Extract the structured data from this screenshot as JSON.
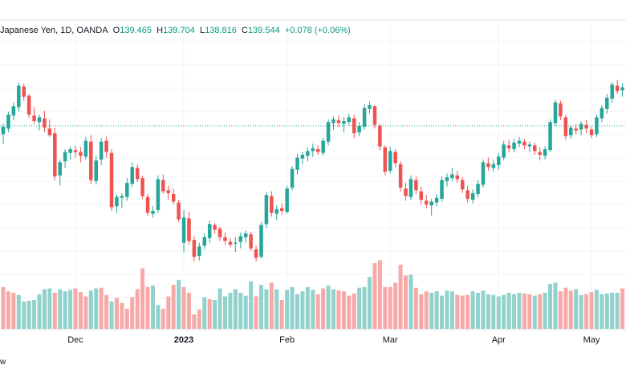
{
  "legend": {
    "symbol": "Japanese Yen, 1D, OANDA",
    "open_label": "O",
    "open": "139.465",
    "high_label": "H",
    "high": "139.704",
    "low_label": "L",
    "low": "138.816",
    "close_label": "C",
    "close": "139.544",
    "change": "+0.078 (+0.06%)"
  },
  "bottom_label": "w",
  "colors": {
    "up": "#26a69a",
    "down": "#ef5350",
    "up_volume": "#92d2cc",
    "down_volume": "#f7a9a7",
    "grid": "#f0f3fa",
    "dotted_line": "#26a69a",
    "text": "#131722"
  },
  "chart_data": {
    "type": "candlestick",
    "x_ticks": [
      "Dec",
      "2023",
      "Feb",
      "Mar",
      "Apr",
      "May"
    ],
    "ohlc": [
      [
        132.8,
        133.9,
        131.8,
        133.6
      ],
      [
        133.4,
        135.2,
        133.0,
        134.9
      ],
      [
        134.8,
        136.2,
        134.3,
        135.8
      ],
      [
        135.7,
        138.3,
        135.2,
        138.0
      ],
      [
        137.9,
        138.2,
        136.4,
        136.8
      ],
      [
        136.9,
        137.1,
        134.5,
        134.9
      ],
      [
        134.8,
        135.7,
        133.9,
        134.2
      ],
      [
        134.1,
        134.9,
        133.2,
        134.6
      ],
      [
        134.5,
        135.3,
        133.0,
        133.5
      ],
      [
        133.4,
        134.4,
        132.5,
        132.7
      ],
      [
        132.9,
        133.5,
        127.9,
        128.3
      ],
      [
        128.4,
        130.1,
        127.3,
        129.8
      ],
      [
        129.9,
        131.2,
        129.2,
        130.9
      ],
      [
        130.8,
        131.5,
        130.1,
        131.2
      ],
      [
        131.1,
        131.6,
        130.3,
        130.9
      ],
      [
        130.9,
        131.4,
        129.8,
        130.5
      ],
      [
        130.4,
        132.5,
        130.1,
        132.1
      ],
      [
        132.0,
        132.7,
        127.5,
        127.9
      ],
      [
        127.8,
        130.5,
        127.4,
        130.0
      ],
      [
        130.1,
        132.4,
        129.5,
        132.0
      ],
      [
        132.1,
        132.5,
        130.3,
        130.9
      ],
      [
        130.8,
        131.2,
        124.6,
        125.0
      ],
      [
        125.1,
        126.4,
        124.4,
        126.1
      ],
      [
        126.0,
        126.5,
        124.9,
        126.2
      ],
      [
        126.1,
        128.1,
        125.7,
        127.6
      ],
      [
        127.5,
        129.8,
        127.2,
        129.3
      ],
      [
        129.2,
        129.6,
        127.7,
        128.0
      ],
      [
        128.1,
        128.4,
        125.9,
        126.2
      ],
      [
        126.1,
        126.4,
        124.1,
        124.4
      ],
      [
        124.3,
        125.1,
        123.9,
        124.6
      ],
      [
        124.7,
        128.4,
        124.4,
        128.0
      ],
      [
        127.9,
        128.5,
        126.4,
        126.7
      ],
      [
        126.8,
        127.3,
        125.8,
        126.5
      ],
      [
        126.4,
        127.0,
        125.3,
        125.6
      ],
      [
        125.5,
        125.8,
        123.4,
        123.7
      ],
      [
        121.2,
        124.7,
        120.2,
        123.9
      ],
      [
        123.8,
        124.5,
        121.0,
        121.4
      ],
      [
        121.5,
        121.9,
        119.2,
        119.7
      ],
      [
        119.8,
        121.2,
        119.3,
        120.8
      ],
      [
        120.9,
        122.2,
        120.5,
        121.8
      ],
      [
        121.7,
        123.6,
        121.2,
        123.2
      ],
      [
        123.1,
        123.3,
        122.2,
        122.6
      ],
      [
        122.7,
        122.9,
        121.4,
        121.8
      ],
      [
        121.8,
        122.3,
        121.0,
        121.4
      ],
      [
        121.3,
        121.7,
        120.7,
        121.0
      ],
      [
        121.1,
        121.8,
        120.2,
        121.2
      ],
      [
        121.3,
        122.3,
        120.6,
        121.9
      ],
      [
        121.8,
        122.5,
        121.2,
        122.2
      ],
      [
        122.1,
        122.4,
        120.3,
        120.6
      ],
      [
        120.5,
        120.9,
        119.2,
        119.6
      ],
      [
        119.7,
        123.4,
        119.5,
        123.1
      ],
      [
        123.2,
        126.6,
        122.8,
        126.3
      ],
      [
        126.2,
        126.7,
        124.0,
        124.4
      ],
      [
        124.3,
        125.2,
        123.6,
        124.8
      ],
      [
        124.9,
        125.4,
        124.2,
        124.6
      ],
      [
        124.5,
        127.3,
        124.3,
        127.0
      ],
      [
        127.1,
        129.4,
        126.8,
        129.1
      ],
      [
        129.0,
        130.7,
        128.5,
        130.3
      ],
      [
        130.2,
        130.9,
        129.6,
        130.6
      ],
      [
        130.5,
        131.4,
        129.9,
        131.0
      ],
      [
        131.0,
        131.8,
        130.4,
        131.3
      ],
      [
        131.2,
        131.6,
        130.6,
        130.9
      ],
      [
        130.8,
        132.4,
        130.5,
        132.1
      ],
      [
        132.0,
        134.4,
        131.6,
        134.1
      ],
      [
        134.0,
        134.7,
        133.3,
        134.4
      ],
      [
        134.3,
        134.8,
        133.6,
        134.0
      ],
      [
        133.9,
        134.6,
        133.0,
        134.2
      ],
      [
        134.1,
        135.0,
        133.8,
        134.6
      ],
      [
        134.5,
        134.9,
        132.4,
        132.9
      ],
      [
        133.0,
        134.1,
        132.6,
        133.7
      ],
      [
        133.6,
        136.0,
        133.3,
        135.6
      ],
      [
        135.5,
        136.3,
        135.0,
        135.9
      ],
      [
        135.8,
        135.9,
        133.4,
        133.8
      ],
      [
        133.7,
        133.9,
        131.1,
        131.5
      ],
      [
        131.4,
        131.6,
        128.4,
        128.8
      ],
      [
        128.9,
        131.4,
        128.6,
        131.0
      ],
      [
        130.9,
        131.2,
        129.3,
        129.7
      ],
      [
        129.6,
        129.9,
        126.7,
        127.1
      ],
      [
        127.0,
        127.6,
        125.7,
        126.2
      ],
      [
        126.1,
        128.4,
        125.8,
        128.0
      ],
      [
        127.9,
        128.3,
        126.4,
        126.8
      ],
      [
        126.7,
        127.2,
        125.3,
        125.8
      ],
      [
        125.7,
        126.3,
        124.9,
        125.3
      ],
      [
        125.2,
        125.9,
        124.1,
        125.6
      ],
      [
        125.5,
        126.4,
        125.1,
        126.0
      ],
      [
        125.9,
        128.3,
        125.6,
        127.9
      ],
      [
        127.8,
        128.6,
        127.2,
        128.2
      ],
      [
        128.1,
        129.2,
        127.8,
        128.5
      ],
      [
        128.4,
        128.9,
        127.6,
        128.0
      ],
      [
        127.9,
        128.2,
        126.5,
        126.9
      ],
      [
        126.8,
        127.3,
        125.5,
        125.9
      ],
      [
        125.8,
        126.9,
        125.4,
        126.5
      ],
      [
        126.4,
        127.9,
        126.1,
        127.5
      ],
      [
        127.4,
        130.1,
        127.1,
        129.8
      ],
      [
        129.7,
        130.3,
        128.9,
        129.3
      ],
      [
        129.2,
        130.1,
        128.8,
        129.6
      ],
      [
        129.5,
        130.8,
        129.0,
        130.4
      ],
      [
        130.3,
        132.1,
        130.0,
        131.7
      ],
      [
        131.6,
        132.2,
        130.9,
        131.3
      ],
      [
        131.2,
        132.3,
        130.9,
        131.9
      ],
      [
        131.8,
        132.5,
        131.4,
        132.1
      ],
      [
        132.0,
        132.3,
        131.2,
        131.6
      ],
      [
        131.5,
        132.0,
        130.9,
        131.7
      ],
      [
        131.6,
        131.9,
        130.6,
        131.0
      ],
      [
        130.9,
        131.4,
        130.0,
        130.6
      ],
      [
        130.5,
        131.5,
        130.1,
        131.2
      ],
      [
        131.1,
        134.4,
        130.9,
        134.1
      ],
      [
        134.0,
        136.5,
        133.7,
        136.2
      ],
      [
        136.1,
        136.4,
        134.3,
        134.7
      ],
      [
        134.6,
        134.9,
        132.2,
        132.6
      ],
      [
        132.7,
        133.8,
        132.3,
        133.5
      ],
      [
        133.4,
        133.9,
        132.8,
        133.2
      ],
      [
        133.3,
        134.2,
        132.7,
        133.9
      ],
      [
        133.8,
        134.3,
        132.9,
        133.4
      ],
      [
        133.3,
        133.6,
        132.4,
        132.7
      ],
      [
        132.8,
        134.9,
        132.5,
        134.6
      ],
      [
        134.5,
        135.9,
        134.1,
        135.6
      ],
      [
        135.5,
        137.1,
        135.0,
        136.7
      ],
      [
        136.6,
        138.4,
        136.2,
        138.1
      ],
      [
        138.0,
        138.6,
        137.1,
        137.4
      ],
      [
        137.5,
        138.2,
        136.8,
        137.8
      ]
    ],
    "volume": [
      [
        58,
        0
      ],
      [
        52,
        0
      ],
      [
        50,
        0
      ],
      [
        47,
        1
      ],
      [
        38,
        1
      ],
      [
        39,
        1
      ],
      [
        40,
        1
      ],
      [
        48,
        1
      ],
      [
        55,
        1
      ],
      [
        56,
        1
      ],
      [
        50,
        0
      ],
      [
        55,
        1
      ],
      [
        52,
        1
      ],
      [
        54,
        1
      ],
      [
        56,
        0
      ],
      [
        51,
        0
      ],
      [
        45,
        0
      ],
      [
        53,
        1
      ],
      [
        56,
        1
      ],
      [
        57,
        0
      ],
      [
        47,
        0
      ],
      [
        38,
        1
      ],
      [
        43,
        0
      ],
      [
        36,
        0
      ],
      [
        28,
        0
      ],
      [
        44,
        0
      ],
      [
        55,
        0
      ],
      [
        84,
        0
      ],
      [
        58,
        0
      ],
      [
        60,
        1
      ],
      [
        33,
        1
      ],
      [
        28,
        0
      ],
      [
        45,
        0
      ],
      [
        61,
        0
      ],
      [
        68,
        1
      ],
      [
        58,
        0
      ],
      [
        50,
        0
      ],
      [
        20,
        0
      ],
      [
        27,
        0
      ],
      [
        44,
        1
      ],
      [
        41,
        0
      ],
      [
        40,
        1
      ],
      [
        56,
        1
      ],
      [
        45,
        1
      ],
      [
        50,
        1
      ],
      [
        55,
        1
      ],
      [
        50,
        1
      ],
      [
        46,
        1
      ],
      [
        66,
        1
      ],
      [
        45,
        0
      ],
      [
        61,
        1
      ],
      [
        55,
        1
      ],
      [
        64,
        0
      ],
      [
        55,
        1
      ],
      [
        40,
        0
      ],
      [
        54,
        1
      ],
      [
        58,
        1
      ],
      [
        48,
        1
      ],
      [
        52,
        1
      ],
      [
        58,
        1
      ],
      [
        54,
        1
      ],
      [
        48,
        0
      ],
      [
        56,
        0
      ],
      [
        60,
        1
      ],
      [
        55,
        1
      ],
      [
        53,
        0
      ],
      [
        52,
        0
      ],
      [
        46,
        0
      ],
      [
        49,
        0
      ],
      [
        57,
        1
      ],
      [
        58,
        1
      ],
      [
        72,
        1
      ],
      [
        91,
        0
      ],
      [
        95,
        0
      ],
      [
        58,
        0
      ],
      [
        58,
        0
      ],
      [
        64,
        0
      ],
      [
        89,
        0
      ],
      [
        74,
        0
      ],
      [
        75,
        1
      ],
      [
        57,
        0
      ],
      [
        48,
        0
      ],
      [
        52,
        0
      ],
      [
        50,
        1
      ],
      [
        52,
        1
      ],
      [
        46,
        1
      ],
      [
        53,
        1
      ],
      [
        52,
        1
      ],
      [
        47,
        0
      ],
      [
        46,
        0
      ],
      [
        47,
        0
      ],
      [
        52,
        1
      ],
      [
        50,
        1
      ],
      [
        53,
        1
      ],
      [
        48,
        1
      ],
      [
        47,
        1
      ],
      [
        45,
        1
      ],
      [
        47,
        1
      ],
      [
        50,
        1
      ],
      [
        48,
        1
      ],
      [
        50,
        1
      ],
      [
        49,
        0
      ],
      [
        48,
        0
      ],
      [
        46,
        1
      ],
      [
        48,
        0
      ],
      [
        50,
        1
      ],
      [
        62,
        1
      ],
      [
        64,
        1
      ],
      [
        52,
        0
      ],
      [
        57,
        0
      ],
      [
        53,
        0
      ],
      [
        55,
        1
      ],
      [
        47,
        1
      ],
      [
        48,
        0
      ],
      [
        51,
        0
      ],
      [
        54,
        1
      ],
      [
        48,
        1
      ],
      [
        49,
        1
      ],
      [
        50,
        1
      ],
      [
        50,
        1
      ],
      [
        56,
        0
      ]
    ],
    "ylim": [
      112,
      142
    ],
    "reference_line": 133.7,
    "volume_max": 100,
    "tick_candle_index": [
      14,
      35,
      55,
      75,
      96,
      114
    ]
  }
}
